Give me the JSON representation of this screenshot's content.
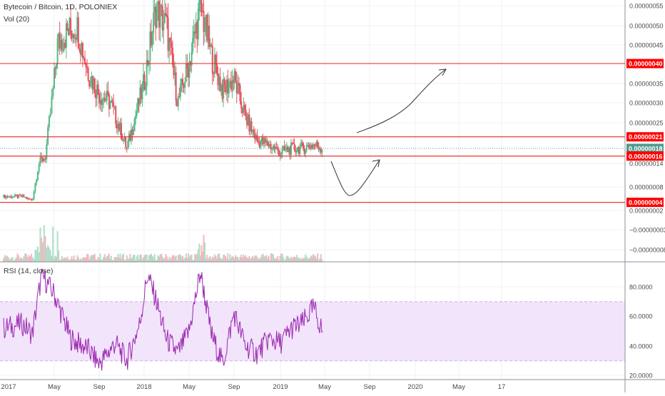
{
  "header": {
    "symbol_line": "Bytecoin / Bitcoin, 1D, POLONIEX",
    "volume_label": "Vol (20)"
  },
  "rsi": {
    "label": "RSI (14, close)",
    "ticks": [
      "80.0000",
      "60.0000",
      "40.0000",
      "20.0000"
    ],
    "band_upper": 70,
    "band_lower": 30
  },
  "colors": {
    "background": "#ffffff",
    "grid": "#eef0f3",
    "level_line": "#e53935",
    "level_badge": "#ff0000",
    "current_badge": "#4f9a8e",
    "up_candle": "#53b987",
    "down_candle": "#eb4d5c",
    "rsi_line": "#9c27b0",
    "rsi_band": "#f1e4fb",
    "drawing": "#333333"
  },
  "chart_data": {
    "type": "candlestick",
    "exchange": "POLONIEX",
    "pair": "Bytecoin / Bitcoin",
    "interval": "1D",
    "x_ticks": [
      "2017",
      "May",
      "Sep",
      "2018",
      "May",
      "Sep",
      "2019",
      "May",
      "Sep",
      "2020",
      "May",
      "17"
    ],
    "y_ticks": [
      "0.00000055",
      "0.00000050",
      "0.00000045",
      "0.00000035",
      "0.00000030",
      "0.00000025",
      "0.00000014",
      "0.00000008",
      "0.00000002",
      "−0.00000003",
      "−0.00000008"
    ],
    "ylim": [
      -1e-07,
      5.6e-07
    ],
    "price_series": [
      {
        "date": "2017-01-01",
        "close": 5.5e-08
      },
      {
        "date": "2017-02-15",
        "close": 5.5e-08
      },
      {
        "date": "2017-03-10",
        "close": 4.5e-08
      },
      {
        "date": "2017-03-25",
        "close": 1.4e-07
      },
      {
        "date": "2017-04-10",
        "close": 1.6e-07
      },
      {
        "date": "2017-04-25",
        "close": 3e-07
      },
      {
        "date": "2017-05-10",
        "close": 4.5e-07
      },
      {
        "date": "2017-06-05",
        "close": 4.8e-07
      },
      {
        "date": "2017-07-01",
        "close": 5e-07
      },
      {
        "date": "2017-08-01",
        "close": 3.8e-07
      },
      {
        "date": "2017-09-01",
        "close": 3.2e-07
      },
      {
        "date": "2017-10-01",
        "close": 3e-07
      },
      {
        "date": "2017-11-15",
        "close": 1.8e-07
      },
      {
        "date": "2018-01-01",
        "close": 3.5e-07
      },
      {
        "date": "2018-02-01",
        "close": 5.4e-07
      },
      {
        "date": "2018-03-01",
        "close": 5e-07
      },
      {
        "date": "2018-04-01",
        "close": 3e-07
      },
      {
        "date": "2018-05-01",
        "close": 4e-07
      },
      {
        "date": "2018-06-01",
        "close": 5.5e-07
      },
      {
        "date": "2018-07-01",
        "close": 4.2e-07
      },
      {
        "date": "2018-08-01",
        "close": 3.3e-07
      },
      {
        "date": "2018-09-01",
        "close": 3.6e-07
      },
      {
        "date": "2018-10-01",
        "close": 2.6e-07
      },
      {
        "date": "2018-11-01",
        "close": 2e-07
      },
      {
        "date": "2018-12-01",
        "close": 1.9e-07
      },
      {
        "date": "2019-01-01",
        "close": 1.7e-07
      },
      {
        "date": "2019-02-01",
        "close": 1.8e-07
      },
      {
        "date": "2019-03-01",
        "close": 1.8e-07
      },
      {
        "date": "2019-04-01",
        "close": 1.9e-07
      },
      {
        "date": "2019-04-25",
        "close": 1.8e-07
      }
    ],
    "horizontal_levels": [
      {
        "label": "0.00000040",
        "value": 4e-07,
        "style": "level"
      },
      {
        "label": "0.00000021",
        "value": 2.1e-07,
        "style": "level"
      },
      {
        "label": "0.00000018",
        "value": 1.8e-07,
        "style": "current"
      },
      {
        "label": "0.00000016",
        "value": 1.6e-07,
        "style": "level"
      },
      {
        "label": "0.00000004",
        "value": 4e-08,
        "style": "level"
      }
    ],
    "rsi_series": [
      {
        "date": "2017-01-01",
        "value": 52
      },
      {
        "date": "2017-02-15",
        "value": 55
      },
      {
        "date": "2017-03-10",
        "value": 48
      },
      {
        "date": "2017-04-01",
        "value": 88
      },
      {
        "date": "2017-05-01",
        "value": 75
      },
      {
        "date": "2017-06-15",
        "value": 45
      },
      {
        "date": "2017-08-01",
        "value": 38
      },
      {
        "date": "2017-09-01",
        "value": 28
      },
      {
        "date": "2017-10-15",
        "value": 42
      },
      {
        "date": "2017-11-15",
        "value": 30
      },
      {
        "date": "2017-12-20",
        "value": 55
      },
      {
        "date": "2018-01-10",
        "value": 88
      },
      {
        "date": "2018-02-01",
        "value": 72
      },
      {
        "date": "2018-03-01",
        "value": 45
      },
      {
        "date": "2018-04-01",
        "value": 35
      },
      {
        "date": "2018-05-01",
        "value": 50
      },
      {
        "date": "2018-06-01",
        "value": 90
      },
      {
        "date": "2018-07-01",
        "value": 48
      },
      {
        "date": "2018-08-01",
        "value": 28
      },
      {
        "date": "2018-09-01",
        "value": 62
      },
      {
        "date": "2018-10-01",
        "value": 40
      },
      {
        "date": "2018-11-01",
        "value": 35
      },
      {
        "date": "2018-12-01",
        "value": 45
      },
      {
        "date": "2019-01-01",
        "value": 42
      },
      {
        "date": "2019-02-01",
        "value": 52
      },
      {
        "date": "2019-03-01",
        "value": 55
      },
      {
        "date": "2019-04-01",
        "value": 66
      },
      {
        "date": "2019-04-25",
        "value": 50
      }
    ],
    "annotations": [
      {
        "type": "arrow",
        "description": "up-curve from current price toward 0.00000040"
      },
      {
        "type": "arrow",
        "description": "dip below 0.00000016 then rebound"
      }
    ]
  }
}
